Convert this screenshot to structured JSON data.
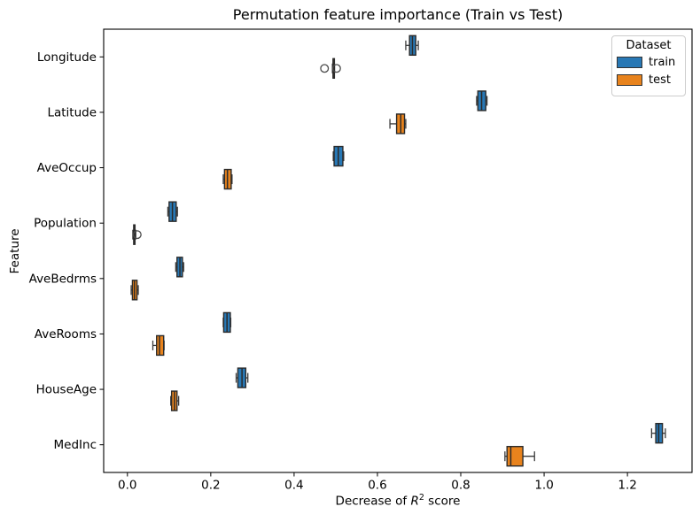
{
  "colors": {
    "train": "#2878b5",
    "test": "#e8831d",
    "box_edge": "#2b2b2b",
    "whisker": "#3a3a3a",
    "outlier_edge": "#4a4a4a",
    "axis": "#000000",
    "legend_border": "#cccccc"
  },
  "chart_data": {
    "type": "boxplot",
    "orientation": "horizontal",
    "title": "Permutation feature importance (Train vs Test)",
    "xlabel": {
      "prefix": "Decrease of ",
      "var": "R",
      "sup": "2",
      "suffix": " score"
    },
    "ylabel": "Feature",
    "categories": [
      "Longitude",
      "Latitude",
      "AveOccup",
      "Population",
      "AveBedrms",
      "AveRooms",
      "HouseAge",
      "MedInc"
    ],
    "xlim": [
      -0.057,
      1.355
    ],
    "x_ticks": [
      0.0,
      0.2,
      0.4,
      0.6,
      0.8,
      1.0,
      1.2
    ],
    "grid": false,
    "legend": {
      "title": "Dataset",
      "position": "upper-right",
      "entries": [
        {
          "label": "train",
          "color": "#2878b5"
        },
        {
          "label": "test",
          "color": "#e8831d"
        }
      ]
    },
    "series": [
      {
        "name": "train",
        "color": "#2878b5",
        "boxes": [
          {
            "feature": "Longitude",
            "whislo": 0.668,
            "q1": 0.677,
            "med": 0.684,
            "q3": 0.692,
            "whishi": 0.698,
            "outliers": []
          },
          {
            "feature": "Latitude",
            "whislo": 0.838,
            "q1": 0.841,
            "med": 0.85,
            "q3": 0.86,
            "whishi": 0.863,
            "outliers": []
          },
          {
            "feature": "AveOccup",
            "whislo": 0.494,
            "q1": 0.496,
            "med": 0.506,
            "q3": 0.517,
            "whishi": 0.519,
            "outliers": []
          },
          {
            "feature": "Population",
            "whislo": 0.097,
            "q1": 0.1,
            "med": 0.108,
            "q3": 0.117,
            "whishi": 0.12,
            "outliers": []
          },
          {
            "feature": "AveBedrms",
            "whislo": 0.116,
            "q1": 0.119,
            "med": 0.126,
            "q3": 0.132,
            "whishi": 0.135,
            "outliers": []
          },
          {
            "feature": "AveRooms",
            "whislo": 0.23,
            "q1": 0.231,
            "med": 0.239,
            "q3": 0.247,
            "whishi": 0.248,
            "outliers": []
          },
          {
            "feature": "HouseAge",
            "whislo": 0.261,
            "q1": 0.265,
            "med": 0.275,
            "q3": 0.284,
            "whishi": 0.289,
            "outliers": []
          },
          {
            "feature": "MedInc",
            "whislo": 1.258,
            "q1": 1.268,
            "med": 1.275,
            "q3": 1.284,
            "whishi": 1.291,
            "outliers": []
          }
        ]
      },
      {
        "name": "test",
        "color": "#e8831d",
        "boxes": [
          {
            "feature": "Longitude",
            "whislo": 0.492,
            "q1": 0.4935,
            "med": 0.494,
            "q3": 0.4955,
            "whishi": 0.497,
            "outliers": [
              0.473,
              0.502
            ]
          },
          {
            "feature": "Latitude",
            "whislo": 0.63,
            "q1": 0.646,
            "med": 0.656,
            "q3": 0.665,
            "whishi": 0.668,
            "outliers": []
          },
          {
            "feature": "AveOccup",
            "whislo": 0.23,
            "q1": 0.233,
            "med": 0.24,
            "q3": 0.249,
            "whishi": 0.251,
            "outliers": []
          },
          {
            "feature": "Population",
            "whislo": 0.013,
            "q1": 0.015,
            "med": 0.0165,
            "q3": 0.018,
            "whishi": 0.02,
            "outliers": [
              0.0235
            ]
          },
          {
            "feature": "AveBedrms",
            "whislo": 0.009,
            "q1": 0.012,
            "med": 0.017,
            "q3": 0.023,
            "whishi": 0.026,
            "outliers": []
          },
          {
            "feature": "AveRooms",
            "whislo": 0.061,
            "q1": 0.07,
            "med": 0.077,
            "q3": 0.087,
            "whishi": 0.088,
            "outliers": []
          },
          {
            "feature": "HouseAge",
            "whislo": 0.104,
            "q1": 0.106,
            "med": 0.113,
            "q3": 0.119,
            "whishi": 0.123,
            "outliers": []
          },
          {
            "feature": "MedInc",
            "whislo": 0.906,
            "q1": 0.911,
            "med": 0.92,
            "q3": 0.949,
            "whishi": 0.977,
            "outliers": []
          }
        ]
      }
    ]
  }
}
